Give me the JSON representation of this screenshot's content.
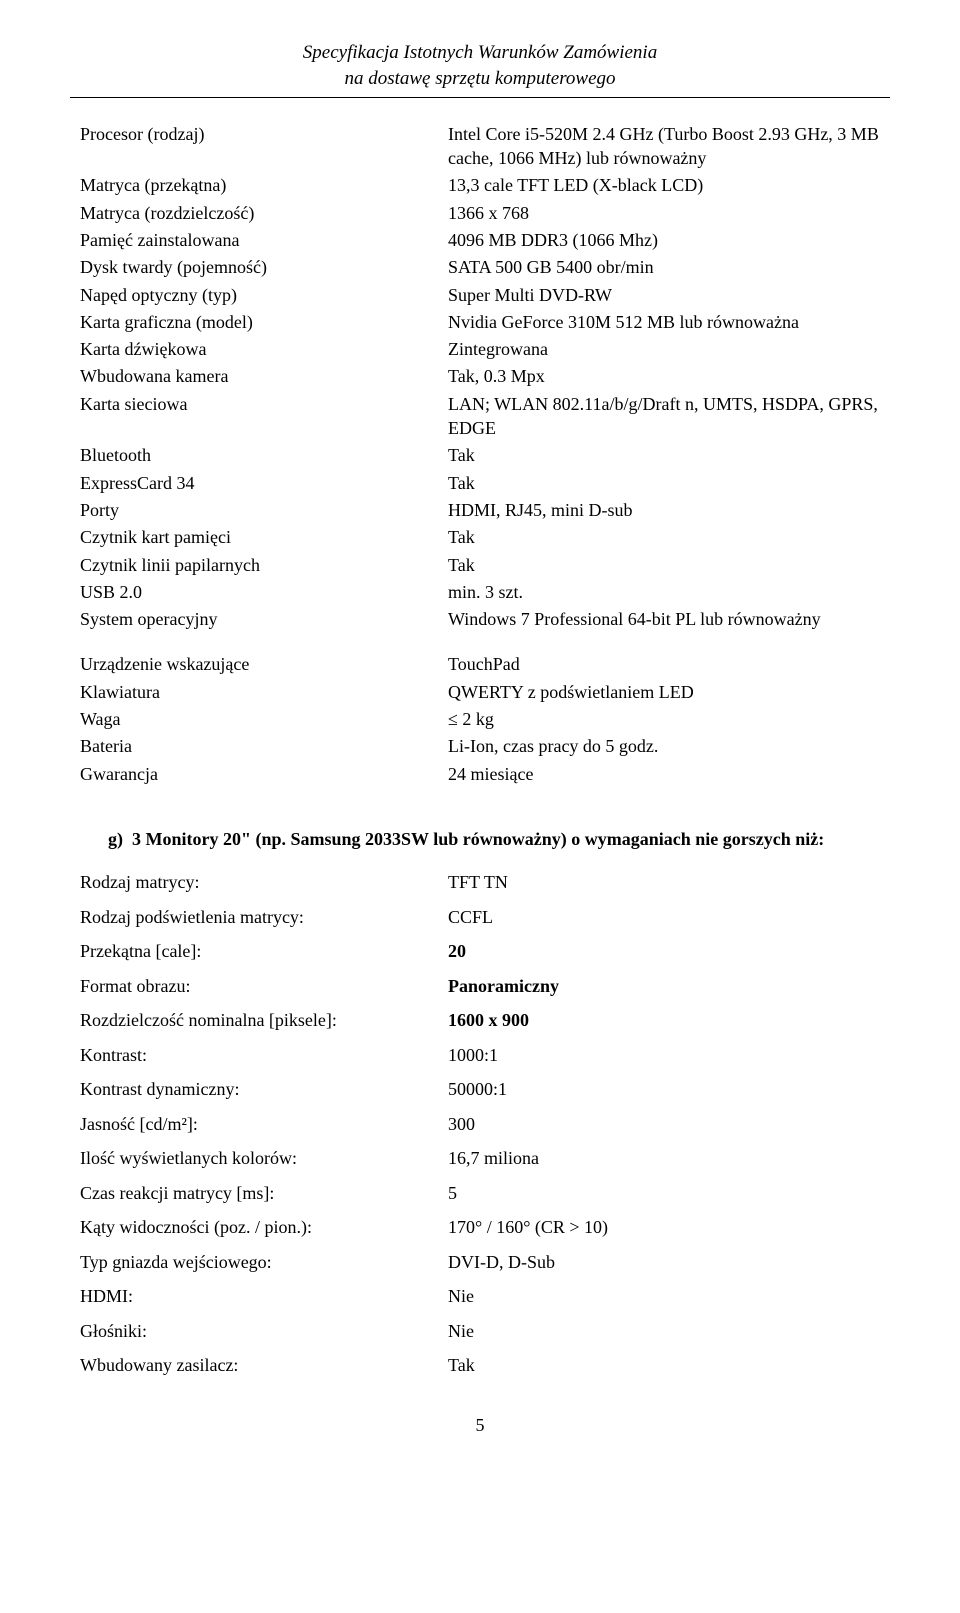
{
  "header": {
    "line1": "Specyfikacja Istotnych Warunków Zamówienia",
    "line2": "na dostawę sprzętu komputerowego"
  },
  "spec1": [
    {
      "label": "Procesor (rodzaj)",
      "value": "Intel Core i5-520M 2.4 GHz (Turbo Boost 2.93 GHz, 3 MB cache, 1066 MHz) lub równoważny"
    },
    {
      "label": "Matryca (przekątna)",
      "value": "13,3 cale TFT LED (X-black LCD)"
    },
    {
      "label": "Matryca (rozdzielczość)",
      "value": "1366 x 768"
    },
    {
      "label": "Pamięć zainstalowana",
      "value": "4096 MB DDR3 (1066 Mhz)"
    },
    {
      "label": "Dysk twardy (pojemność)",
      "value": "SATA 500 GB 5400 obr/min"
    },
    {
      "label": "Napęd optyczny (typ)",
      "value": "Super Multi DVD-RW"
    },
    {
      "label": "Karta graficzna (model)",
      "value": "Nvidia GeForce 310M 512 MB lub równoważna"
    },
    {
      "label": "Karta dźwiękowa",
      "value": "Zintegrowana"
    },
    {
      "label": "Wbudowana kamera",
      "value": "Tak, 0.3 Mpx"
    },
    {
      "label": "Karta sieciowa",
      "value": "LAN; WLAN 802.11a/b/g/Draft n, UMTS, HSDPA, GPRS, EDGE"
    },
    {
      "label": "Bluetooth",
      "value": "Tak"
    },
    {
      "label": "ExpressCard 34",
      "value": "Tak"
    },
    {
      "label": "Porty",
      "value": "HDMI, RJ45, mini D-sub"
    },
    {
      "label": "Czytnik kart pamięci",
      "value": "Tak"
    },
    {
      "label": "Czytnik linii papilarnych",
      "value": "Tak"
    },
    {
      "label": "USB 2.0",
      "value": "min. 3 szt."
    },
    {
      "label": "System operacyjny",
      "value": "Windows 7 Professional 64-bit PL lub równoważny"
    }
  ],
  "spec2": [
    {
      "label": "Urządzenie wskazujące",
      "value": "TouchPad"
    },
    {
      "label": "Klawiatura",
      "value": "QWERTY z podświetlaniem LED"
    },
    {
      "label": "Waga",
      "value": "≤ 2 kg"
    },
    {
      "label": "Bateria",
      "value": "Li-Ion, czas pracy do 5 godz."
    },
    {
      "label": "Gwarancja",
      "value": "24 miesiące"
    }
  ],
  "section_g": {
    "letter": "g)",
    "text": "3 Monitory 20\" (np. Samsung 2033SW lub równoważny) o wymaganiach nie gorszych niż:"
  },
  "spec3": [
    {
      "label": "Rodzaj matrycy:",
      "value": "TFT TN",
      "boldv": false
    },
    {
      "label": "Rodzaj podświetlenia matrycy:",
      "value": "CCFL",
      "boldv": false
    },
    {
      "label": "Przekątna [cale]:",
      "value": "20",
      "boldv": true
    },
    {
      "label": "Format obrazu:",
      "value": "Panoramiczny",
      "boldv": true
    },
    {
      "label": "Rozdzielczość nominalna [piksele]:",
      "value": "1600 x 900",
      "boldv": true
    },
    {
      "label": "Kontrast:",
      "value": "1000:1",
      "boldv": false
    },
    {
      "label": "Kontrast dynamiczny:",
      "value": "50000:1",
      "boldv": false
    },
    {
      "label": "Jasność [cd/m²]:",
      "value": "300",
      "boldv": false
    },
    {
      "label": "Ilość wyświetlanych kolorów:",
      "value": "16,7 miliona",
      "boldv": false
    },
    {
      "label": "Czas reakcji matrycy [ms]:",
      "value": "5",
      "boldv": false
    },
    {
      "label": "Kąty widoczności (poz. / pion.):",
      "value": "170° / 160° (CR > 10)",
      "boldv": false
    },
    {
      "label": "Typ gniazda wejściowego:",
      "value": "DVI-D, D-Sub",
      "boldv": false
    },
    {
      "label": "HDMI:",
      "value": "Nie",
      "boldv": false
    },
    {
      "label": "Głośniki:",
      "value": "Nie",
      "boldv": false
    },
    {
      "label": "Wbudowany zasilacz:",
      "value": "Tak",
      "boldv": false
    }
  ],
  "page_number": "5"
}
